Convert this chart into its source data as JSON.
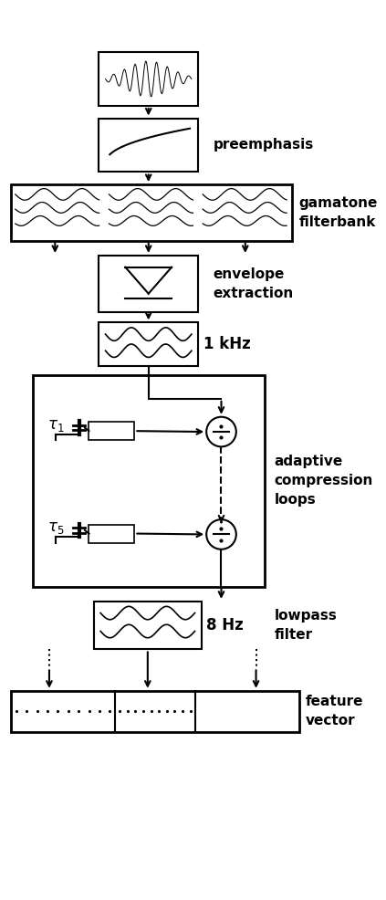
{
  "bg_color": "#ffffff",
  "fg_color": "#000000",
  "labels": {
    "preemphasis": "preemphasis",
    "gamatone": "gamatone\nfilterbank",
    "envelope": "envelope\nextraction",
    "1khz": "1 kHz",
    "adaptive": "adaptive\ncompression\nloops",
    "lowpass": "lowpass\nfilter",
    "8hz": "8 Hz",
    "feature": "feature\nvector",
    "tau1": "$\\tau_1$",
    "tau5": "$\\tau_5$"
  },
  "fig_width": 4.23,
  "fig_height": 9.86,
  "dpi": 100
}
